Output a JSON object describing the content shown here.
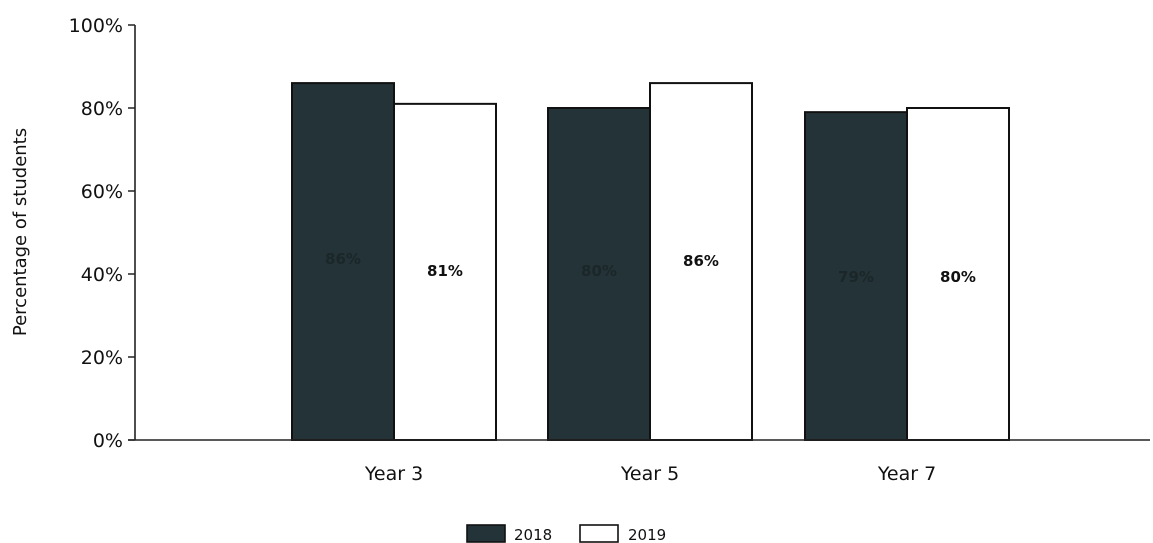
{
  "chart_data": {
    "type": "bar",
    "title": "",
    "xlabel": "",
    "ylabel": "Percentage of students",
    "categories": [
      "Year 3",
      "Year 5",
      "Year 7"
    ],
    "series": [
      {
        "name": "2018",
        "values": [
          86,
          80,
          79
        ],
        "labels": [
          "86%",
          "80%",
          "79%"
        ],
        "color": "#243338"
      },
      {
        "name": "2019",
        "values": [
          81,
          86,
          80
        ],
        "labels": [
          "81%",
          "86%",
          "80%"
        ],
        "color": "#ffffff"
      }
    ],
    "ylim": [
      0,
      100
    ],
    "yticks": [
      0,
      20,
      40,
      60,
      80,
      100
    ],
    "ytick_labels": [
      "0%",
      "20%",
      "40%",
      "60%",
      "80%",
      "100%"
    ],
    "grid": false,
    "legend_position": "bottom-center"
  }
}
